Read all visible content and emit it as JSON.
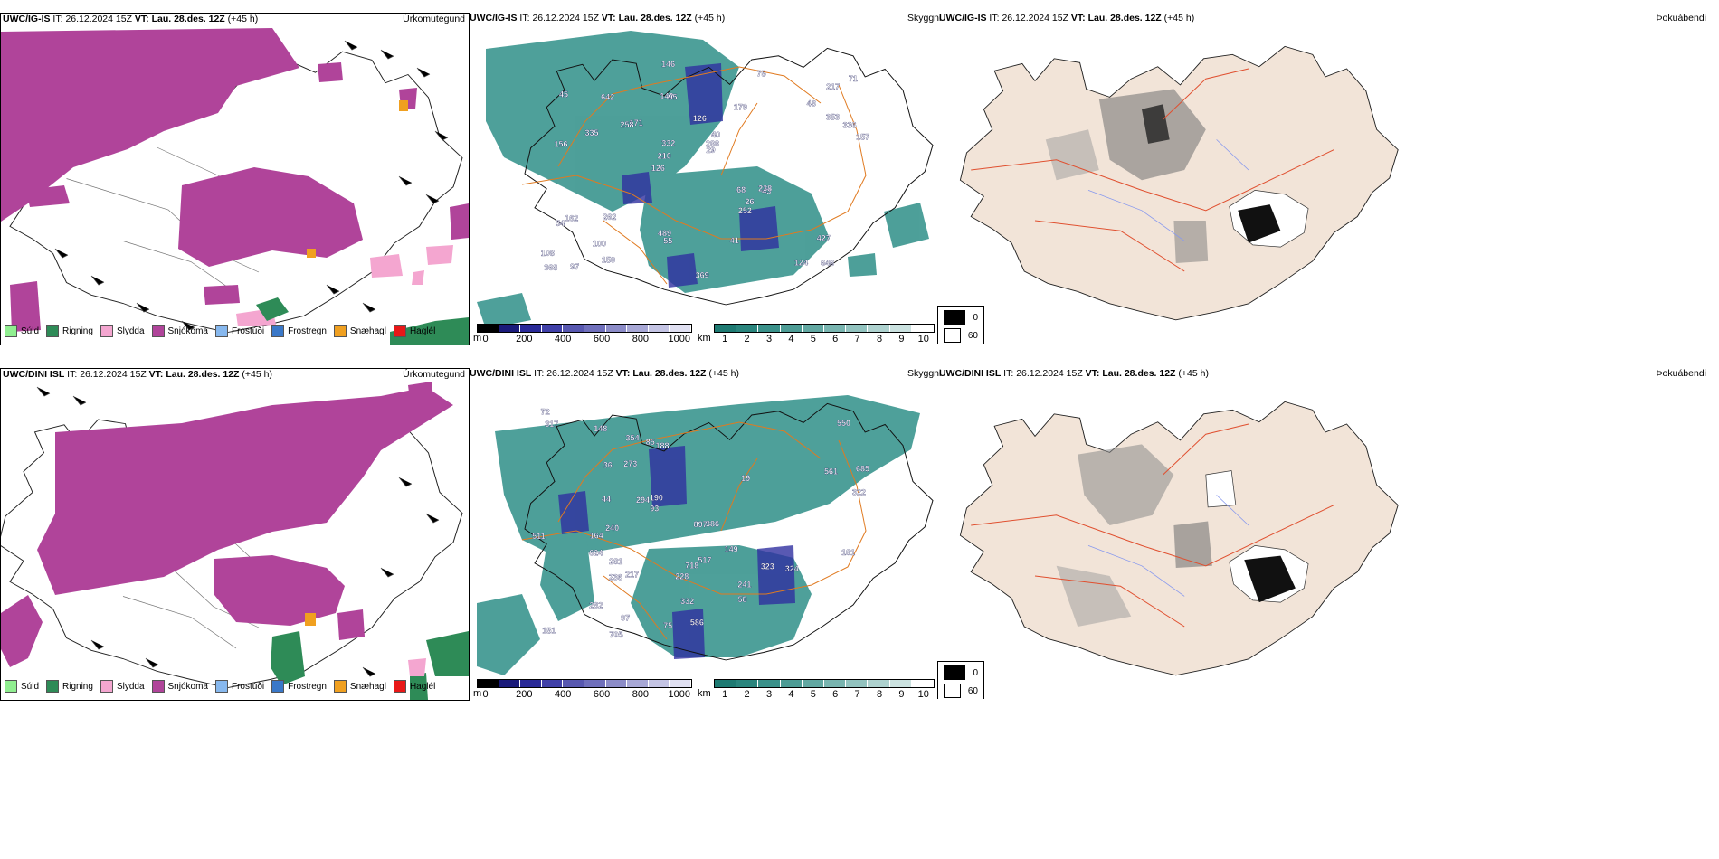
{
  "rows": [
    {
      "model": "UWC/IG-IS",
      "it_label": "IT:",
      "it_value": "26.12.2024 15Z",
      "vt_label": "VT:",
      "vt_value": "Lau. 28.des. 12Z",
      "lead": "(+45 h)"
    },
    {
      "model": "UWC/DINI ISL",
      "it_label": "IT:",
      "it_value": "26.12.2024 15Z",
      "vt_label": "VT:",
      "vt_value": "Lau. 28.des. 12Z",
      "lead": "(+45 h)"
    }
  ],
  "panel_titles": {
    "precip_type": "Úrkomutegund",
    "visibility": "Skyggni",
    "fog": "Þokuábendi"
  },
  "precip_legend": [
    {
      "label": "Súld",
      "color": "#90ee90"
    },
    {
      "label": "Rigning",
      "color": "#2e8b57"
    },
    {
      "label": "Slydda",
      "color": "#f4a6d0"
    },
    {
      "label": "Snjókoma",
      "color": "#b0449a"
    },
    {
      "label": "Frostúði",
      "color": "#87b8ee"
    },
    {
      "label": "Frostregn",
      "color": "#3a78c8"
    },
    {
      "label": "Snæhagl",
      "color": "#f0a020"
    },
    {
      "label": "Haglél",
      "color": "#e81818"
    }
  ],
  "elevation_bar": {
    "unit": "m",
    "ticks": [
      "0",
      "200",
      "400",
      "600",
      "800",
      "1000"
    ],
    "colors": [
      "#000000",
      "#1a1a7a",
      "#2a2a98",
      "#4040a8",
      "#5858b0",
      "#7070bc",
      "#8c8cc8",
      "#a8a8d6",
      "#c4c4e4",
      "#e0e0f2"
    ]
  },
  "visibility_bar": {
    "unit": "km",
    "ticks": [
      "1",
      "2",
      "3",
      "4",
      "5",
      "6",
      "7",
      "8",
      "9",
      "10"
    ],
    "colors": [
      "#1e7a72",
      "#2a857d",
      "#3a918a",
      "#4d9c95",
      "#62a8a2",
      "#79b5b0",
      "#92c3bf",
      "#aed2cf",
      "#cbe2e0",
      "#ffffff"
    ]
  },
  "fog_legend": [
    {
      "label": "0",
      "color": "#000000"
    },
    {
      "label": "60",
      "color": "#ffffff"
    }
  ],
  "vis_labels": {
    "row1": [
      "646",
      "156",
      "217",
      "126",
      "179",
      "97",
      "142",
      "126",
      "162",
      "171",
      "108",
      "100",
      "95",
      "40",
      "43",
      "45",
      "146",
      "157",
      "68",
      "353",
      "210",
      "489",
      "332",
      "642",
      "75",
      "262",
      "124",
      "427",
      "238",
      "369",
      "258",
      "335",
      "252",
      "150",
      "336",
      "288",
      "368",
      "55",
      "29",
      "54",
      "48",
      "71",
      "26",
      "41"
    ],
    "row2": [
      "317",
      "72",
      "511",
      "550",
      "685",
      "241",
      "188",
      "217",
      "151",
      "323",
      "236",
      "386",
      "705",
      "624",
      "718",
      "294",
      "228",
      "282",
      "273",
      "190",
      "322",
      "332",
      "97",
      "240",
      "164",
      "517",
      "281",
      "324",
      "75",
      "85",
      "149",
      "354",
      "561",
      "181",
      "897",
      "44",
      "148",
      "93",
      "58",
      "19",
      "36",
      "586"
    ]
  }
}
